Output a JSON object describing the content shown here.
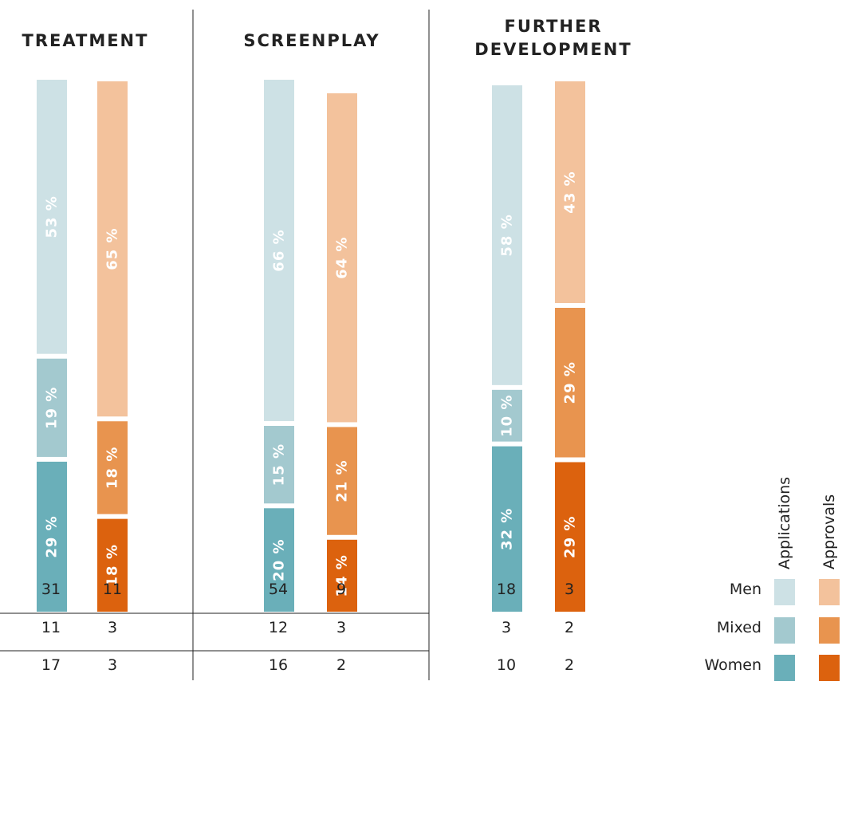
{
  "chart_data": {
    "type": "bar",
    "stacked": true,
    "percent_stacked": true,
    "orientation": "vertical",
    "stack_order_bottom_to_top": [
      "Women",
      "Mixed",
      "Men"
    ],
    "groups": [
      {
        "title": "TREATMENT",
        "bars": [
          {
            "name": "Applications",
            "percents": {
              "Men": "53 %",
              "Mixed": "19 %",
              "Women": "29 %"
            },
            "share": {
              "Men": 53,
              "Mixed": 19,
              "Women": 29
            },
            "counts": {
              "Men": "31",
              "Mixed": "11",
              "Women": "17"
            }
          },
          {
            "name": "Approvals",
            "percents": {
              "Men": "65 %",
              "Mixed": "18 %",
              "Women": "18 %"
            },
            "share": {
              "Men": 65,
              "Mixed": 18,
              "Women": 18
            },
            "counts": {
              "Men": "11",
              "Mixed": "3",
              "Women": "3"
            }
          }
        ]
      },
      {
        "title": "SCREENPLAY",
        "bars": [
          {
            "name": "Applications",
            "percents": {
              "Men": "66 %",
              "Mixed": "15 %",
              "Women": "20 %"
            },
            "share": {
              "Men": 66,
              "Mixed": 15,
              "Women": 20
            },
            "counts": {
              "Men": "54",
              "Mixed": "12",
              "Women": "16"
            }
          },
          {
            "name": "Approvals",
            "percents": {
              "Men": "64 %",
              "Mixed": "21 %",
              "Women": "14 %"
            },
            "share": {
              "Men": 64,
              "Mixed": 21,
              "Women": 14
            },
            "counts": {
              "Men": "9",
              "Mixed": "3",
              "Women": "2"
            }
          }
        ]
      },
      {
        "title": "FURTHER DEVELOPMENT",
        "title_lines": [
          "FURTHER",
          "DEVELOPMENT"
        ],
        "bars": [
          {
            "name": "Applications",
            "percents": {
              "Men": "58 %",
              "Mixed": "10 %",
              "Women": "32 %"
            },
            "share": {
              "Men": 58,
              "Mixed": 10,
              "Women": 32
            },
            "counts": {
              "Men": "18",
              "Mixed": "3",
              "Women": "10"
            }
          },
          {
            "name": "Approvals",
            "percents": {
              "Men": "43 %",
              "Mixed": "29 %",
              "Women": "29 %"
            },
            "share": {
              "Men": 43,
              "Mixed": 29,
              "Women": 29
            },
            "counts": {
              "Men": "3",
              "Mixed": "2",
              "Women": "2"
            }
          }
        ]
      }
    ],
    "rows": [
      "Men",
      "Mixed",
      "Women"
    ],
    "legend": {
      "placement": "bottom-right",
      "columns": [
        "Applications",
        "Approvals"
      ],
      "rows": [
        "Men",
        "Mixed",
        "Women"
      ]
    },
    "colors": {
      "Applications": {
        "Men": "#cde1e5",
        "Mixed": "#a3c9cf",
        "Women": "#6aafb9"
      },
      "Approvals": {
        "Men": "#f3c29c",
        "Mixed": "#e8944f",
        "Women": "#dc620e"
      }
    },
    "grid": false
  }
}
